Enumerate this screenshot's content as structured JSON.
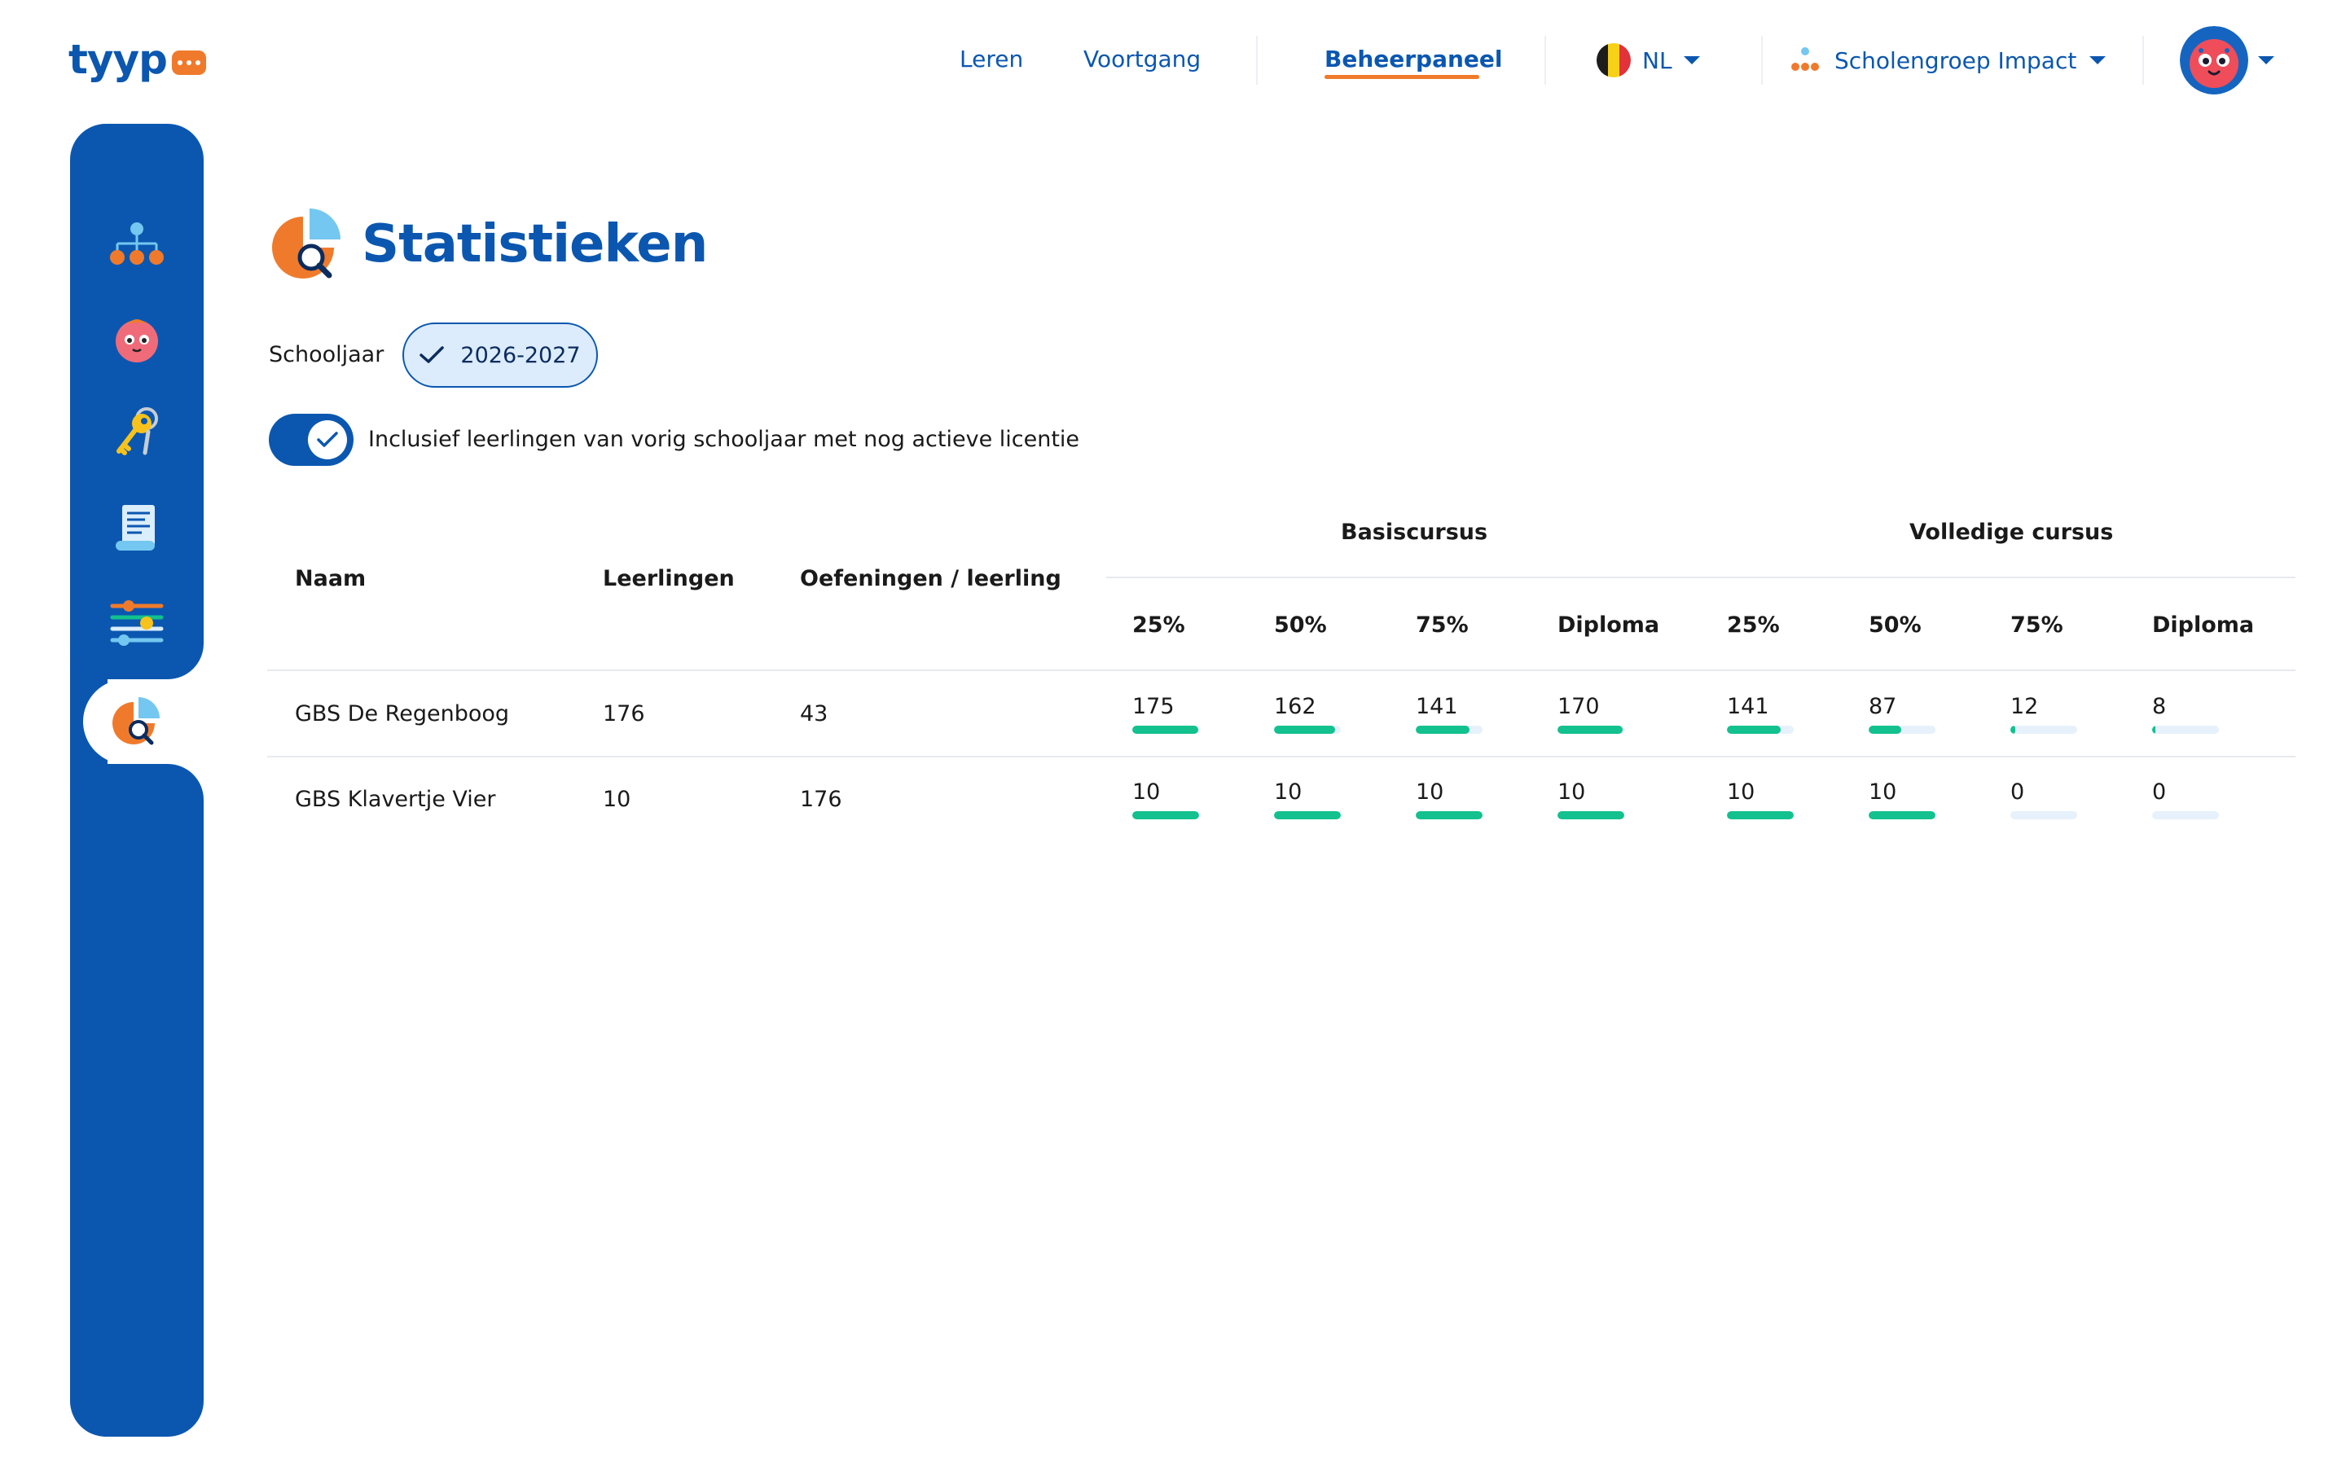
{
  "header": {
    "logo": "tyyp",
    "nav": [
      "Leren",
      "Voortgang",
      "Beheerpaneel"
    ],
    "language": "NL",
    "organization": "Scholengroep Impact"
  },
  "sidebar": {
    "items": [
      "org-structure-icon",
      "student-face-icon",
      "keys-icon",
      "invoice-icon",
      "settings-sliders-icon",
      "statistics-icon"
    ],
    "active": "statistics-icon"
  },
  "page": {
    "title": "Statistieken",
    "year_label": "Schooljaar",
    "year_value": "2026-2027",
    "toggle_label": "Inclusief leerlingen van vorig schooljaar met nog actieve licentie",
    "toggle_on": true
  },
  "table": {
    "headers": {
      "name": "Naam",
      "students": "Leerlingen",
      "exercises": "Oefeningen / leerling",
      "group_basic": "Basiscursus",
      "group_full": "Volledige cursus",
      "milestones": [
        "25%",
        "50%",
        "75%",
        "Diploma",
        "25%",
        "50%",
        "75%",
        "Diploma"
      ]
    },
    "rows": [
      {
        "name": "GBS De Regenboog",
        "students": "176",
        "exercises": "43",
        "values": [
          "175",
          "162",
          "141",
          "170",
          "141",
          "87",
          "12",
          "8"
        ],
        "fractions": [
          0.99,
          0.92,
          0.8,
          0.97,
          0.8,
          0.49,
          0.07,
          0.05
        ]
      },
      {
        "name": "GBS Klavertje Vier",
        "students": "10",
        "exercises": "176",
        "values": [
          "10",
          "10",
          "10",
          "10",
          "10",
          "10",
          "0",
          "0"
        ],
        "fractions": [
          1,
          1,
          1,
          1,
          1,
          1,
          0,
          0
        ]
      }
    ]
  },
  "colors": {
    "primary": "#0b57b0",
    "accent": "#f07a2b",
    "progress": "#12c18e",
    "progress_track": "#e6f1fb",
    "chip_bg": "#dcecfc"
  }
}
